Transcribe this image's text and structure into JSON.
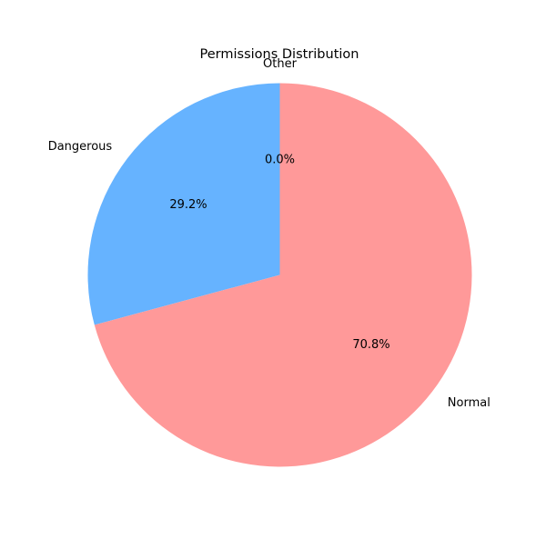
{
  "chart_data": {
    "type": "pie",
    "title": "Permissions Distribution",
    "slices": [
      {
        "label": "Dangerous",
        "value": 29.2,
        "pct_label": "29.2%",
        "color": "#66b3ff"
      },
      {
        "label": "Normal",
        "value": 70.8,
        "pct_label": "70.8%",
        "color": "#ff9999"
      },
      {
        "label": "Other",
        "value": 0.0,
        "pct_label": "0.0%",
        "color": "#99ff99"
      }
    ],
    "start_angle_deg": 90,
    "direction": "counterclockwise",
    "legend": "none"
  }
}
